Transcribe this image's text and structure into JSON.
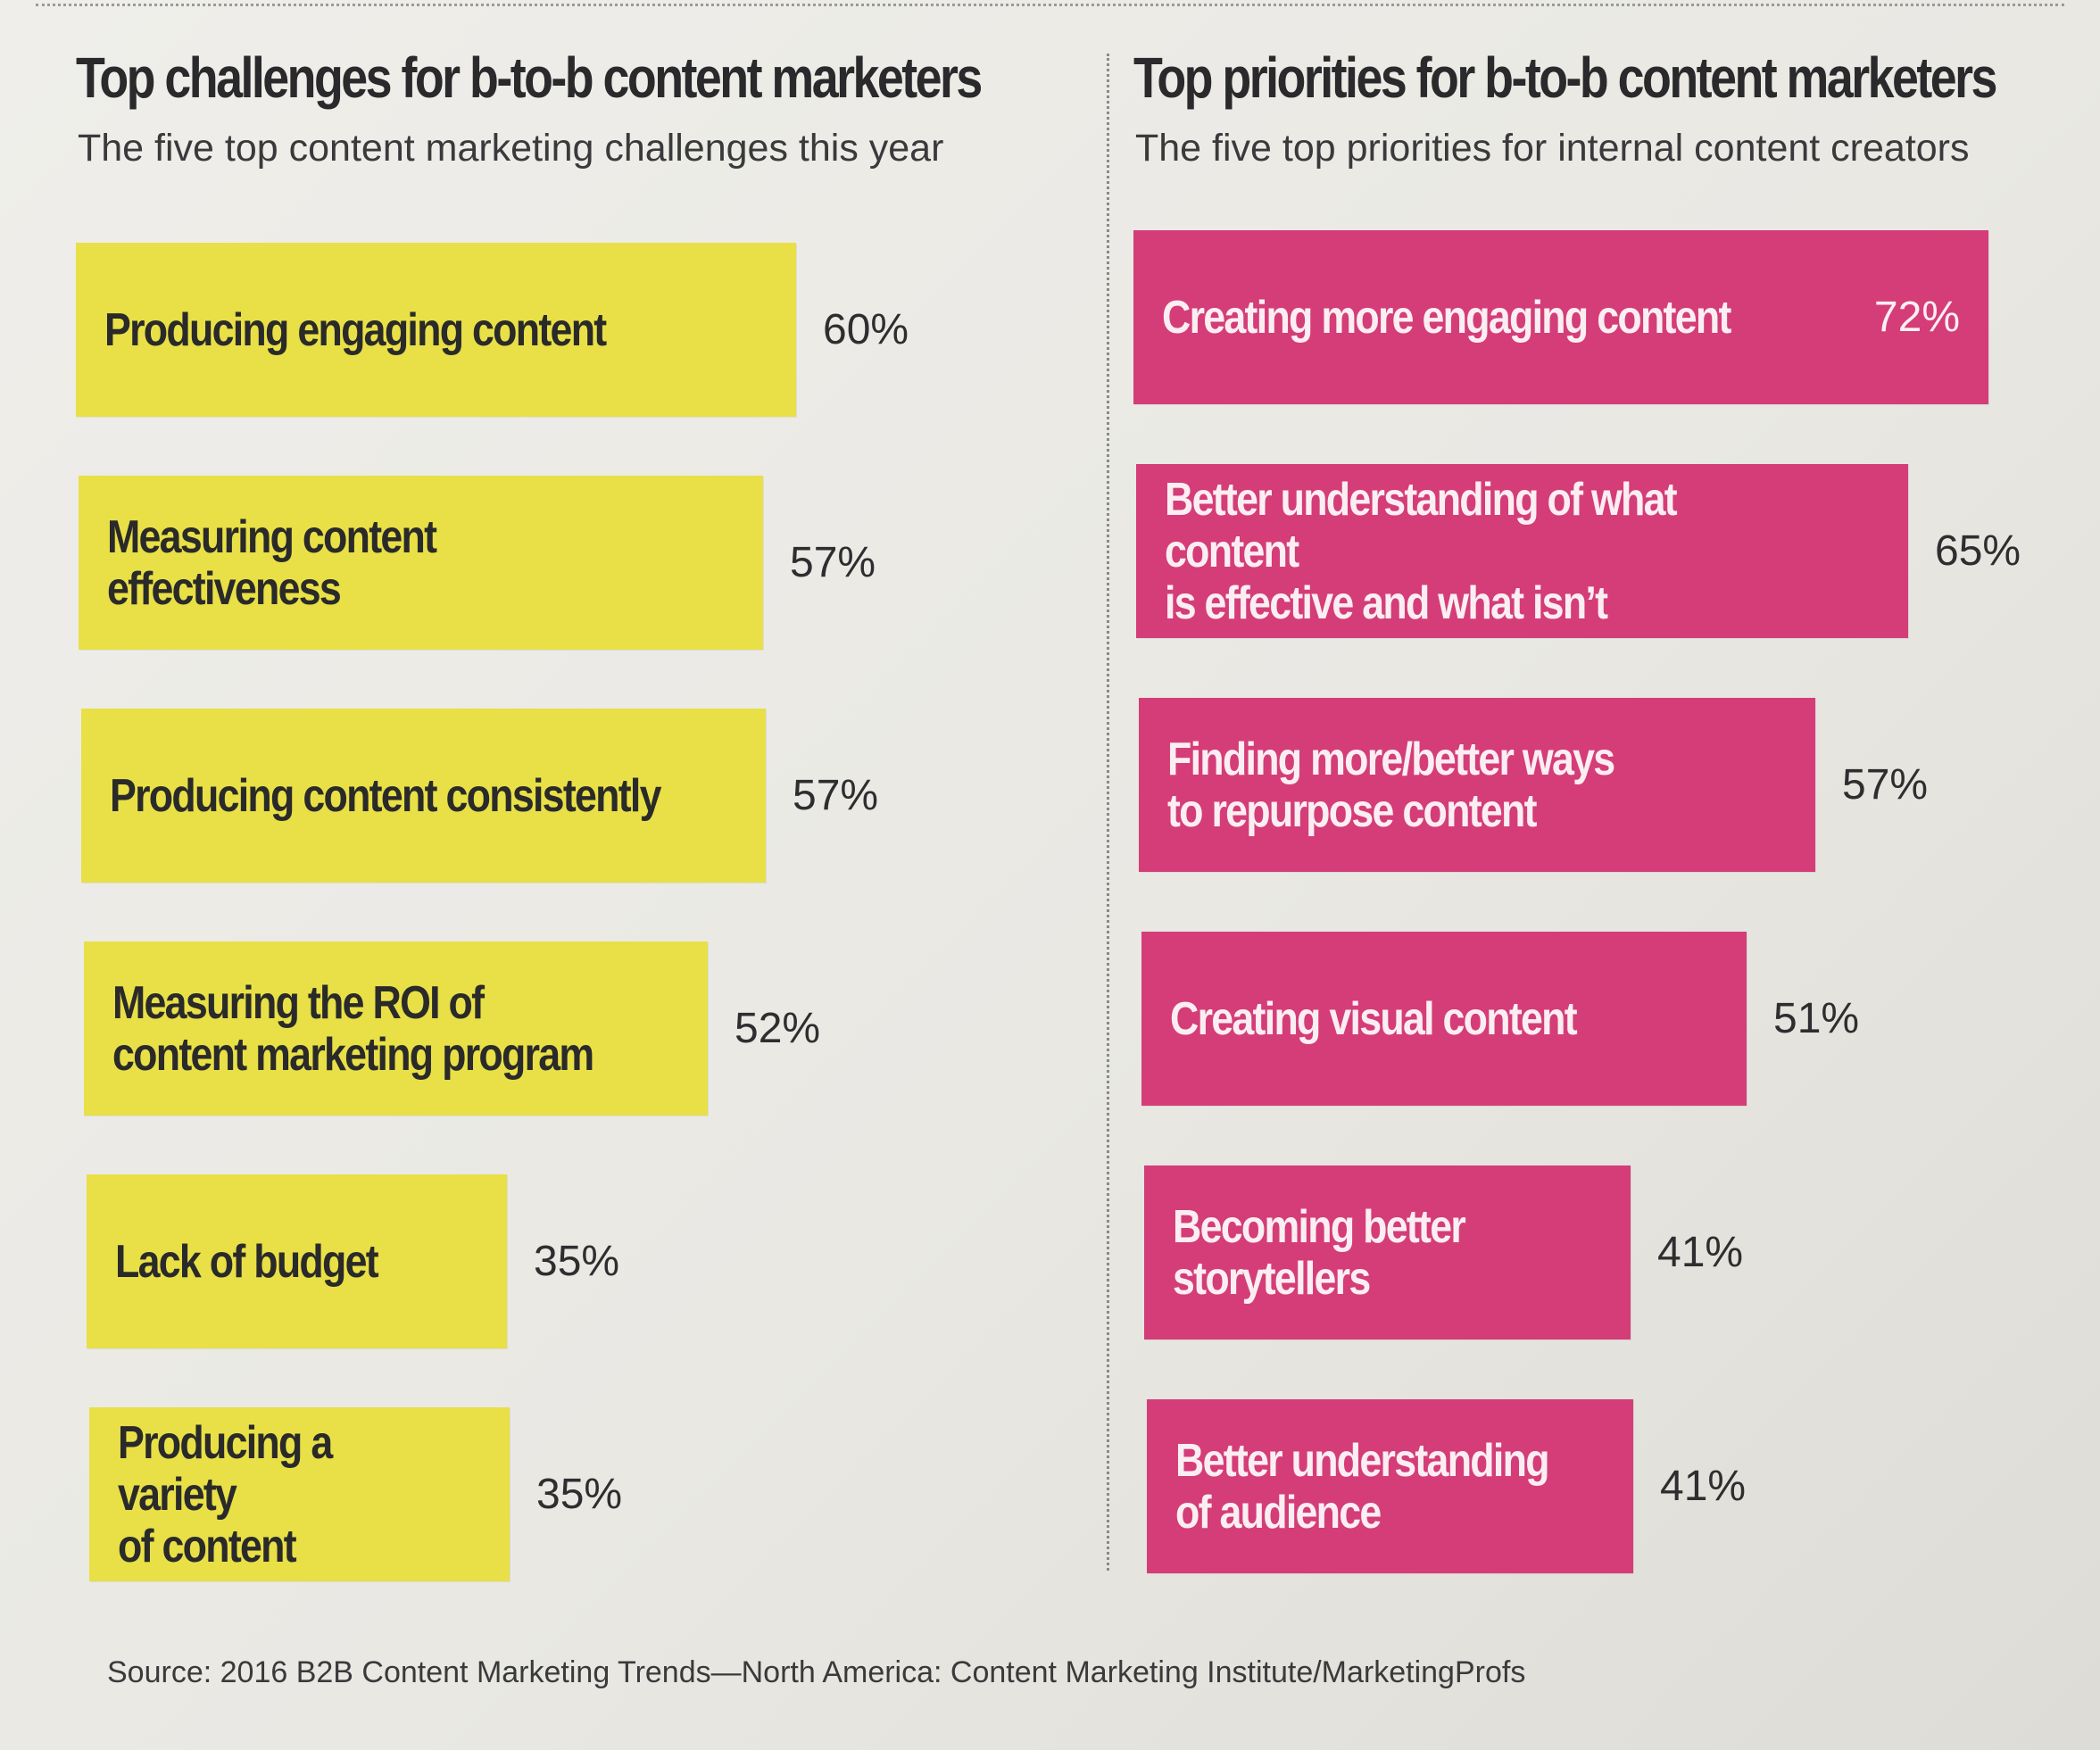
{
  "chart_data": [
    {
      "type": "bar",
      "orientation": "horizontal",
      "title": "Top challenges for b-to-b content marketers",
      "subtitle": "The five top content marketing challenges this year",
      "color": "#e8e046",
      "categories": [
        "Producing engaging content",
        "Measuring content effectiveness",
        "Producing content consistently",
        "Measuring the ROI of\ncontent marketing program",
        "Lack of budget",
        "Producing a variety\nof content"
      ],
      "values": [
        60,
        57,
        57,
        52,
        35,
        35
      ],
      "value_labels": [
        "60%",
        "57%",
        "57%",
        "52%",
        "35%",
        "35%"
      ],
      "unit": "%"
    },
    {
      "type": "bar",
      "orientation": "horizontal",
      "title": "Top priorities for b-to-b content marketers",
      "subtitle": "The five top priorities for internal content creators",
      "color": "#d43d78",
      "categories": [
        "Creating more engaging content",
        "Better understanding of what content\nis effective and what isn’t",
        "Finding more/better ways\nto repurpose content",
        "Creating visual content",
        "Becoming better\nstorytellers",
        "Better understanding\nof audience"
      ],
      "values": [
        72,
        65,
        57,
        51,
        41,
        41
      ],
      "value_labels": [
        "72%",
        "65%",
        "57%",
        "51%",
        "41%",
        "41%"
      ],
      "unit": "%"
    }
  ],
  "source": "Source: 2016 B2B Content Marketing Trends—North America: Content Marketing Institute/MarketingProfs"
}
